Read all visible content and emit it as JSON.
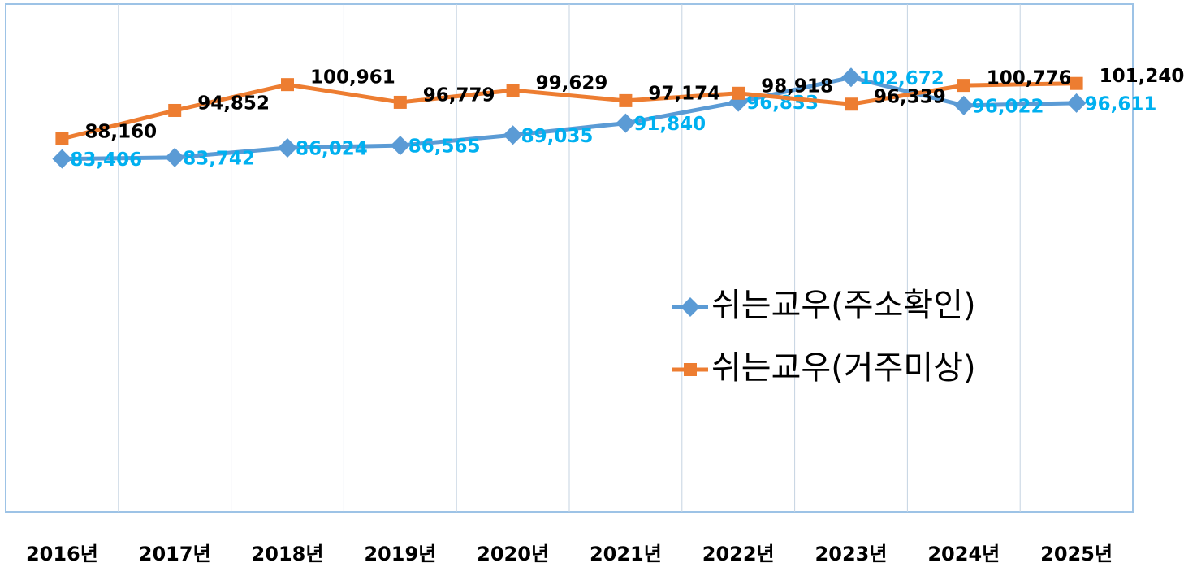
{
  "chart_data": {
    "type": "line",
    "categories": [
      "2016년",
      "2017년",
      "2018년",
      "2019년",
      "2020년",
      "2021년",
      "2022년",
      "2023년",
      "2024년",
      "2025년"
    ],
    "series": [
      {
        "name": "쉬는교우(주소확인)",
        "color": "#5b9bd5",
        "label_color": "#00b0f0",
        "marker": "diamond",
        "values": [
          83406,
          83742,
          86024,
          86565,
          89035,
          91840,
          96833,
          102672,
          96022,
          96611
        ],
        "value_labels": [
          "83,406",
          "83,742",
          "86,024",
          "86,565",
          "89,035",
          "91,840",
          "96,833",
          "102,672",
          "96,022",
          "96,611"
        ]
      },
      {
        "name": "쉬는교우(거주미상)",
        "color": "#ed7d31",
        "label_color": "#000000",
        "marker": "square",
        "values": [
          88160,
          94852,
          100961,
          96779,
          99629,
          97174,
          98918,
          96339,
          100776,
          101240
        ],
        "value_labels": [
          "88,160",
          "94,852",
          "100,961",
          "96,779",
          "99,629",
          "97,174",
          "98,918",
          "96,339",
          "100,776",
          "101,240"
        ]
      }
    ],
    "ylim": [
      0,
      120000
    ]
  }
}
